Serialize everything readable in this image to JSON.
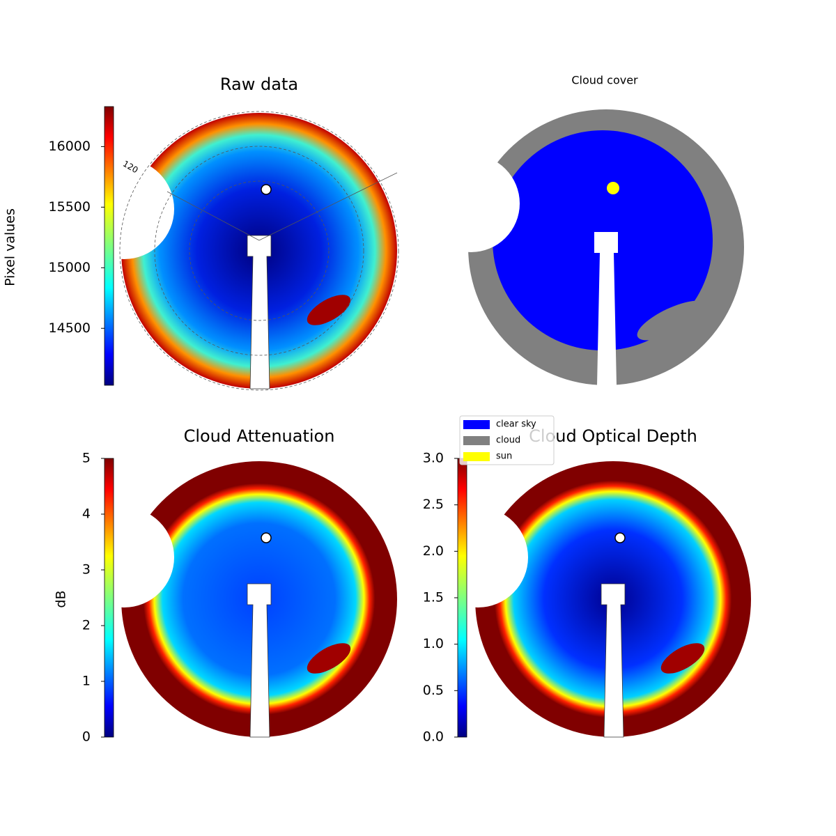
{
  "chart_data": [
    {
      "type": "image",
      "title": "Raw data",
      "colorbar_label": "Pixel values",
      "ylim": [
        14030,
        16330
      ],
      "yticks": [
        14500,
        15000,
        15500,
        16000
      ],
      "colormap": "jet",
      "annotations": [
        "120"
      ]
    },
    {
      "type": "image",
      "title": "Cloud cover",
      "legend": [
        {
          "name": "clear sky",
          "color": "#0000ff"
        },
        {
          "name": "cloud",
          "color": "#808080"
        },
        {
          "name": "sun",
          "color": "#ffff00"
        }
      ]
    },
    {
      "type": "image",
      "title": "Cloud Attenuation",
      "colorbar_label": "dB",
      "ylim": [
        0,
        5
      ],
      "yticks": [
        0,
        1,
        2,
        3,
        4,
        5
      ],
      "colormap": "jet"
    },
    {
      "type": "image",
      "title": "Cloud Optical Depth",
      "ylim": [
        0,
        3
      ],
      "yticks": [
        {
          "value": 0,
          "label": "0.0"
        },
        0.5,
        {
          "value": 1,
          "label": "1.0"
        },
        1.5,
        {
          "value": 2,
          "label": "2.0"
        },
        2.5,
        {
          "value": 3,
          "label": "3.0"
        }
      ],
      "colormap": "jet"
    }
  ]
}
